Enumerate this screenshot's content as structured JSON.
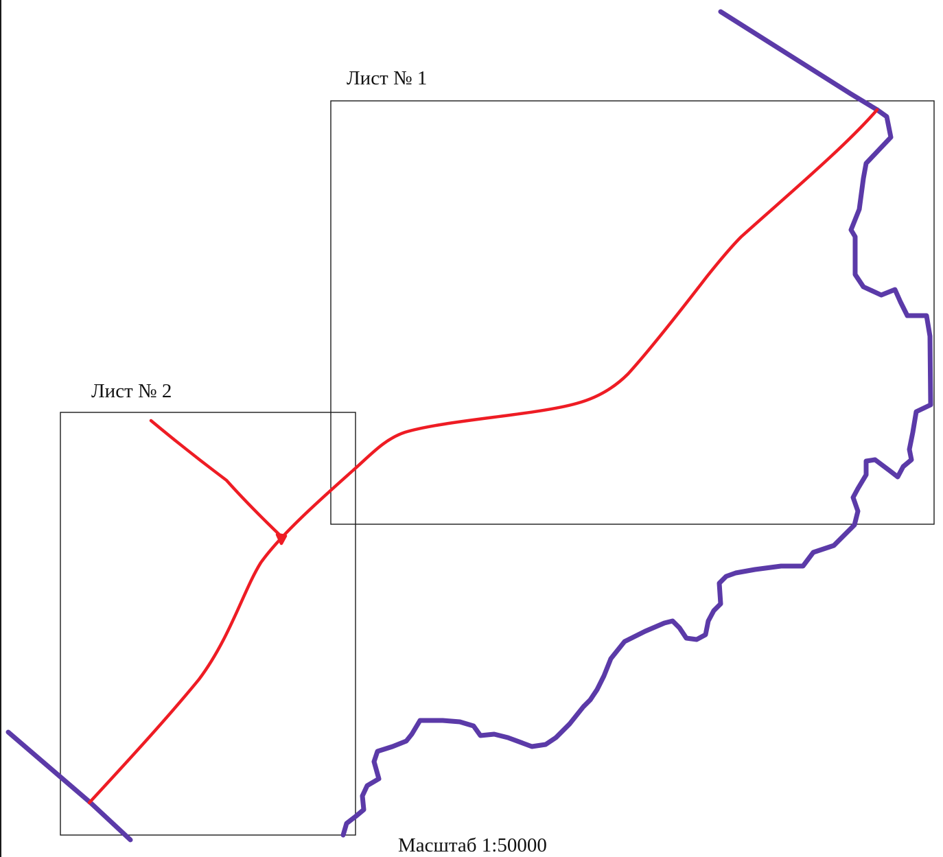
{
  "sheets": [
    {
      "label": "Лист № 1"
    },
    {
      "label": "Лист № 2"
    }
  ],
  "scale_label": "Масштаб 1:50000",
  "colors": {
    "route": "#ee1c24",
    "boundary": "#5b3aa8",
    "frame": "#1a1a1a"
  }
}
